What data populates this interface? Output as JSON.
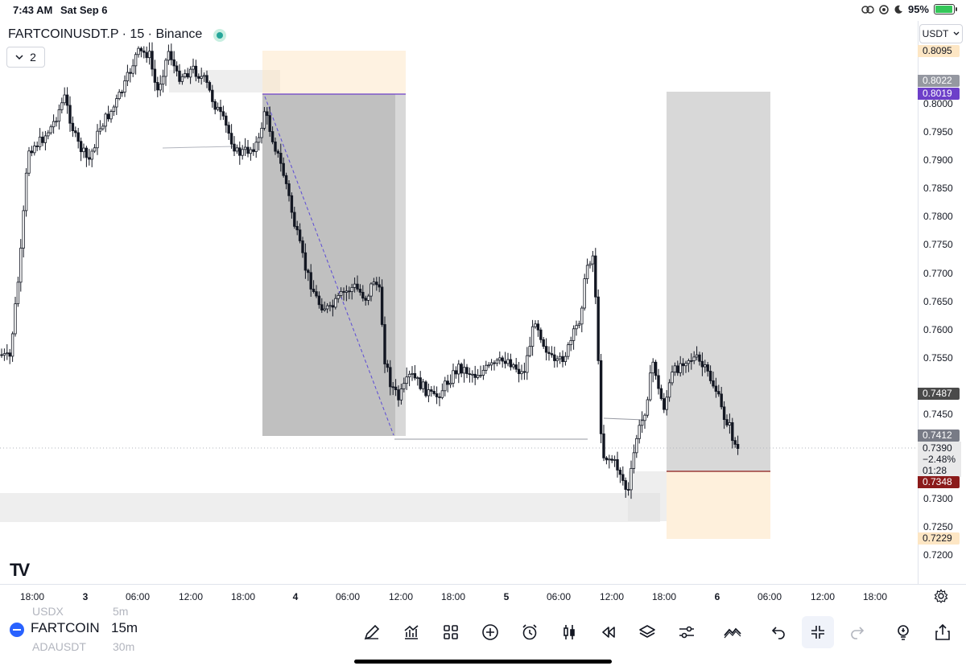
{
  "status_bar": {
    "time": "7:43 AM",
    "date": "Sat Sep 6",
    "battery": "95%",
    "battery_level": 0.95
  },
  "chart": {
    "title": "FARTCOINUSDT.P · 15 · Binance",
    "collapse_count": "2",
    "currency": "USDT",
    "price_ticks": [
      "0.8000",
      "0.7950",
      "0.7900",
      "0.7850",
      "0.7800",
      "0.7750",
      "0.7700",
      "0.7650",
      "0.7600",
      "0.7550",
      "0.7450",
      "0.7300",
      "0.7250",
      "0.7200"
    ],
    "price_tags": {
      "p8095": "0.8095",
      "p8022": "0.8022",
      "p8019": "0.8019",
      "p7487": "0.7487",
      "p7412": "0.7412",
      "p7348": "0.7348",
      "p7229": "0.7229"
    },
    "last_price": {
      "price": "0.7390",
      "change": "−2.48%",
      "countdown": "01:28"
    },
    "time_ticks": [
      "18:00",
      "3",
      "06:00",
      "12:00",
      "18:00",
      "4",
      "06:00",
      "12:00",
      "18:00",
      "5",
      "06:00",
      "12:00",
      "18:00",
      "6",
      "06:00",
      "12:00",
      "18:00"
    ],
    "colors": {
      "candle": "#131722",
      "entry_line": "#6d3fc9",
      "stop_line": "#8b1a1a",
      "zone_gray": "#9e9e9e",
      "zone_orange": "#fde6c4"
    }
  },
  "bottom_bar": {
    "ghost_above": "USDX",
    "ghost_above_tf": "5m",
    "symbol": "FARTCOIN",
    "interval": "15m",
    "ghost_below": "ADAUSDT",
    "ghost_below_tf": "30m",
    "tools": [
      "brush-icon",
      "indicators-icon",
      "layout-icon",
      "add-icon",
      "alert-icon",
      "candles-icon",
      "replay-icon",
      "layers-icon",
      "settings-sliders-icon",
      "trend-icon",
      "undo-icon",
      "exit-fullscreen-icon",
      "redo-icon",
      "idea-icon",
      "share-icon"
    ]
  }
}
